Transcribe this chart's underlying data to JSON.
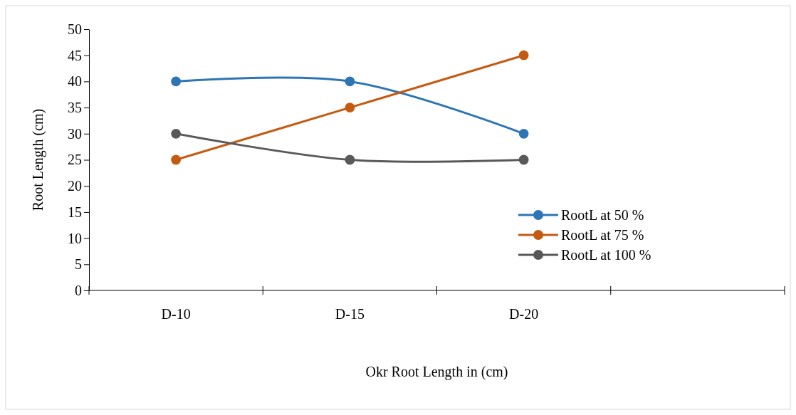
{
  "chart_data": {
    "type": "line",
    "xlabel": "Okr Root Length in (cm)",
    "ylabel": "Root Length (cm)",
    "categories": [
      "D-10",
      "D-15",
      "D-20",
      null
    ],
    "ylim": [
      0,
      50
    ],
    "yticks": [
      0,
      5,
      10,
      15,
      20,
      25,
      30,
      35,
      40,
      45,
      50
    ],
    "grid": false,
    "legend": "right",
    "marker": "circle",
    "line_style": "solid",
    "series": [
      {
        "name": "RootL at 50 %",
        "color": "#2e75b6",
        "values": [
          40,
          40,
          30,
          null
        ]
      },
      {
        "name": "RootL at 75 %",
        "color": "#c55a11",
        "values": [
          25,
          35,
          45,
          null
        ]
      },
      {
        "name": "RootL at 100 %",
        "color": "#595959",
        "values": [
          30,
          25,
          25,
          null
        ]
      }
    ]
  }
}
